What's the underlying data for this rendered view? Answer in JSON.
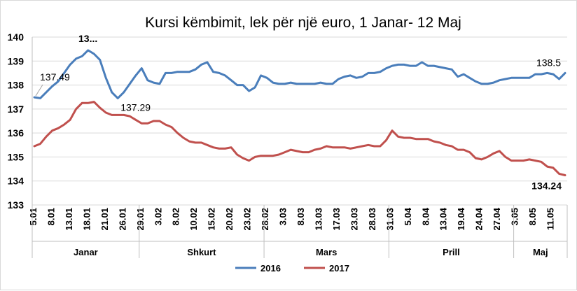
{
  "chart_data": {
    "type": "line",
    "title": "Kursi këmbimit, lek për një euro, 1 Janar- 12 Maj",
    "xlabel": "",
    "ylabel": "",
    "ylim": [
      133,
      140
    ],
    "yticks": [
      133,
      134,
      135,
      136,
      137,
      138,
      139,
      140
    ],
    "grid": true,
    "legend_position": "bottom",
    "x_tick_labels": [
      "5.01",
      "8.01",
      "13.01",
      "18.01",
      "21.01",
      "26.01",
      "29.01",
      "3.02",
      "8.02",
      "10.02",
      "15.02",
      "20.02",
      "23.02",
      "28.02",
      "3.03",
      "8.03",
      "13.03",
      "17.03",
      "23.03",
      "28.03",
      "31.03",
      "5.04",
      "8.04",
      "13.04",
      "19.04",
      "24.04",
      "27.04",
      "3.05",
      "8.05",
      "11.05"
    ],
    "months": [
      {
        "label": "Janar",
        "ticks": 6
      },
      {
        "label": "Shkurt",
        "ticks": 7
      },
      {
        "label": "Mars",
        "ticks": 7
      },
      {
        "label": "Prill",
        "ticks": 7
      },
      {
        "label": "Maj",
        "ticks": 3
      }
    ],
    "series": [
      {
        "name": "2016",
        "color": "#4a7ebb",
        "values": [
          137.49,
          137.45,
          137.7,
          137.95,
          138.15,
          138.5,
          138.85,
          139.1,
          139.2,
          139.45,
          139.3,
          139.05,
          138.3,
          137.7,
          137.45,
          137.7,
          138.05,
          138.4,
          138.7,
          138.2,
          138.1,
          138.05,
          138.5,
          138.5,
          138.55,
          138.55,
          138.55,
          138.65,
          138.85,
          138.95,
          138.55,
          138.5,
          138.4,
          138.2,
          138.0,
          138.0,
          137.75,
          137.9,
          138.4,
          138.3,
          138.1,
          138.05,
          138.05,
          138.1,
          138.05,
          138.05,
          138.05,
          138.05,
          138.1,
          138.05,
          138.05,
          138.25,
          138.35,
          138.4,
          138.3,
          138.35,
          138.5,
          138.5,
          138.55,
          138.7,
          138.8,
          138.85,
          138.85,
          138.8,
          138.8,
          138.95,
          138.8,
          138.8,
          138.75,
          138.7,
          138.65,
          138.35,
          138.45,
          138.3,
          138.15,
          138.05,
          138.05,
          138.1,
          138.2,
          138.25,
          138.3,
          138.3,
          138.3,
          138.3,
          138.45,
          138.45,
          138.5,
          138.45,
          138.25,
          138.5
        ]
      },
      {
        "name": "2017",
        "color": "#c0504d",
        "values": [
          135.45,
          135.55,
          135.85,
          136.1,
          136.2,
          136.35,
          136.55,
          137.0,
          137.25,
          137.25,
          137.3,
          137.05,
          136.85,
          136.75,
          136.75,
          136.75,
          136.7,
          136.55,
          136.4,
          136.4,
          136.5,
          136.5,
          136.35,
          136.25,
          136.0,
          135.8,
          135.65,
          135.6,
          135.6,
          135.5,
          135.4,
          135.35,
          135.35,
          135.4,
          135.1,
          134.95,
          134.85,
          135.0,
          135.05,
          135.05,
          135.05,
          135.1,
          135.2,
          135.3,
          135.25,
          135.2,
          135.2,
          135.3,
          135.35,
          135.45,
          135.4,
          135.4,
          135.4,
          135.35,
          135.4,
          135.45,
          135.5,
          135.45,
          135.45,
          135.7,
          136.1,
          135.85,
          135.8,
          135.8,
          135.75,
          135.75,
          135.75,
          135.65,
          135.6,
          135.5,
          135.45,
          135.3,
          135.3,
          135.2,
          134.95,
          134.9,
          135.0,
          135.15,
          135.25,
          135.0,
          134.85,
          134.85,
          134.85,
          134.9,
          134.85,
          134.8,
          134.6,
          134.55,
          134.3,
          134.24
        ]
      }
    ],
    "annotations": [
      {
        "series": "2016",
        "index": 0,
        "text": "137.49",
        "style": "normal"
      },
      {
        "series": "2016",
        "index": 9,
        "text": "13...",
        "style": "bold"
      },
      {
        "series": "2016",
        "index": 14,
        "text": "137.29",
        "style": "normal"
      },
      {
        "series": "2016",
        "index": 89,
        "text": "138.5",
        "style": "normal"
      },
      {
        "series": "2017",
        "index": 89,
        "text": "134.24",
        "style": "bold"
      }
    ]
  }
}
